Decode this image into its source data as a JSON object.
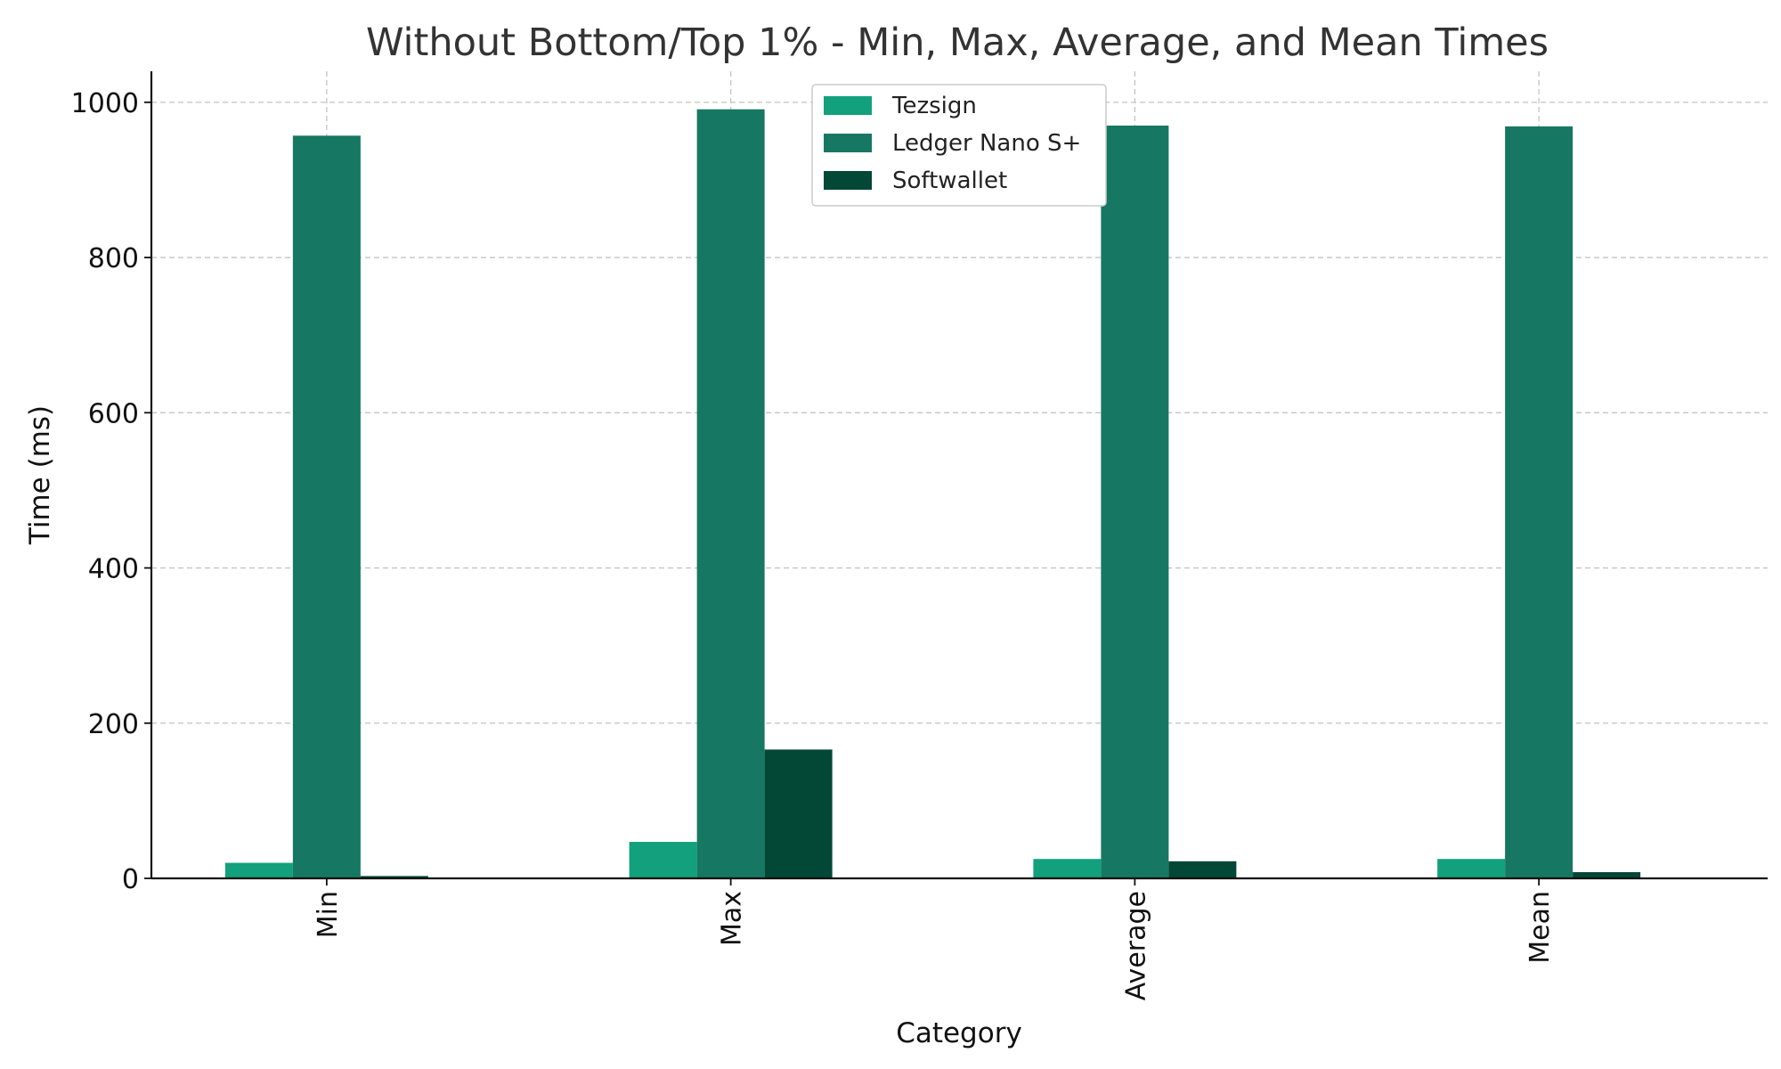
{
  "chart_data": {
    "type": "bar",
    "title": "Without Bottom/Top 1% - Min, Max, Average, and Mean Times",
    "xlabel": "Category",
    "ylabel": "Time (ms)",
    "categories": [
      "Min",
      "Max",
      "Average",
      "Mean"
    ],
    "series": [
      {
        "name": "Tezsign",
        "color": "#13a07c",
        "values": [
          20,
          47,
          25,
          25
        ]
      },
      {
        "name": "Ledger Nano S+",
        "color": "#167862",
        "values": [
          957,
          991,
          970,
          969
        ]
      },
      {
        "name": "Softwallet",
        "color": "#034737",
        "values": [
          3,
          166,
          22,
          8
        ]
      }
    ],
    "ylim": [
      0,
      1040
    ],
    "yticks": [
      0,
      200,
      400,
      600,
      800,
      1000
    ],
    "grid": true,
    "legend_position": "top-center"
  }
}
